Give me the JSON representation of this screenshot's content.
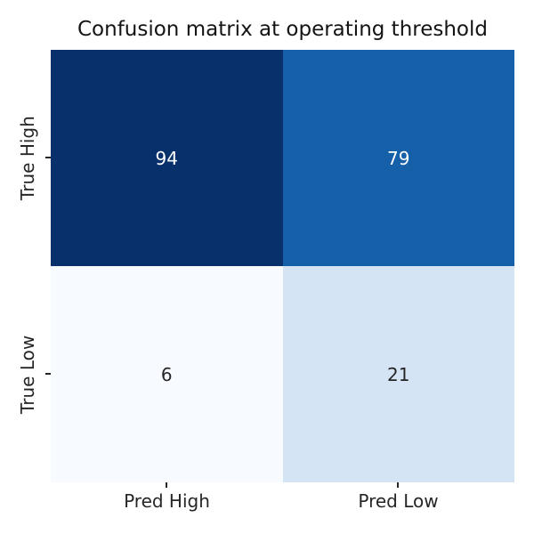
{
  "title": "Confusion matrix at operating threshold",
  "colors": {
    "background": "#ffffff",
    "tick_mark": "#262626",
    "label_text": "#262626",
    "annotation_light": "#ffffff",
    "annotation_dark": "#262626"
  },
  "chart_data": {
    "type": "heatmap",
    "title": "Confusion matrix at operating threshold",
    "colormap": "Blues",
    "x_tick_labels": [
      "Pred High",
      "Pred Low"
    ],
    "y_tick_labels": [
      "True High",
      "True Low"
    ],
    "rows": [
      [
        94,
        79
      ],
      [
        6,
        21
      ]
    ],
    "value_range": [
      6,
      94
    ],
    "legend": "none",
    "grid": false,
    "cells": [
      {
        "row": "True High",
        "col": "Pred High",
        "value": "94",
        "bg": "#08306b",
        "fg": "#ffffff"
      },
      {
        "row": "True High",
        "col": "Pred Low",
        "value": "79",
        "bg": "#1660aa",
        "fg": "#ffffff"
      },
      {
        "row": "True Low",
        "col": "Pred High",
        "value": "6",
        "bg": "#f7fbff",
        "fg": "#262626"
      },
      {
        "row": "True Low",
        "col": "Pred Low",
        "value": "21",
        "bg": "#d4e4f4",
        "fg": "#262626"
      }
    ]
  }
}
